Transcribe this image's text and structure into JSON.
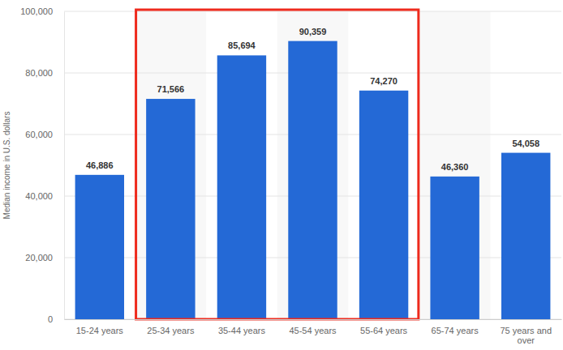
{
  "chart_data": {
    "type": "bar",
    "y_label": "Median income in U.S. dollars",
    "categories": [
      "15-24 years",
      "25-34 years",
      "35-44 years",
      "45-54 years",
      "55-64 years",
      "65-74 years",
      "75 years and over"
    ],
    "values": [
      46886,
      71566,
      85694,
      90359,
      74270,
      46360,
      54058
    ],
    "value_labels": [
      "46,886",
      "71,566",
      "85,694",
      "90,359",
      "74,270",
      "46,360",
      "54,058"
    ],
    "color": "#2469d6",
    "ylim": [
      0,
      100000
    ],
    "yticks": [
      0,
      {
        "value": 20000,
        "label": "20,000"
      },
      {
        "value": 40000,
        "label": "40,000"
      },
      {
        "value": 60000,
        "label": "60,000"
      },
      {
        "value": 80000,
        "label": "80,000"
      },
      {
        "value": 100000,
        "label": "100,000"
      }
    ],
    "grid": true,
    "data_labels": true
  }
}
